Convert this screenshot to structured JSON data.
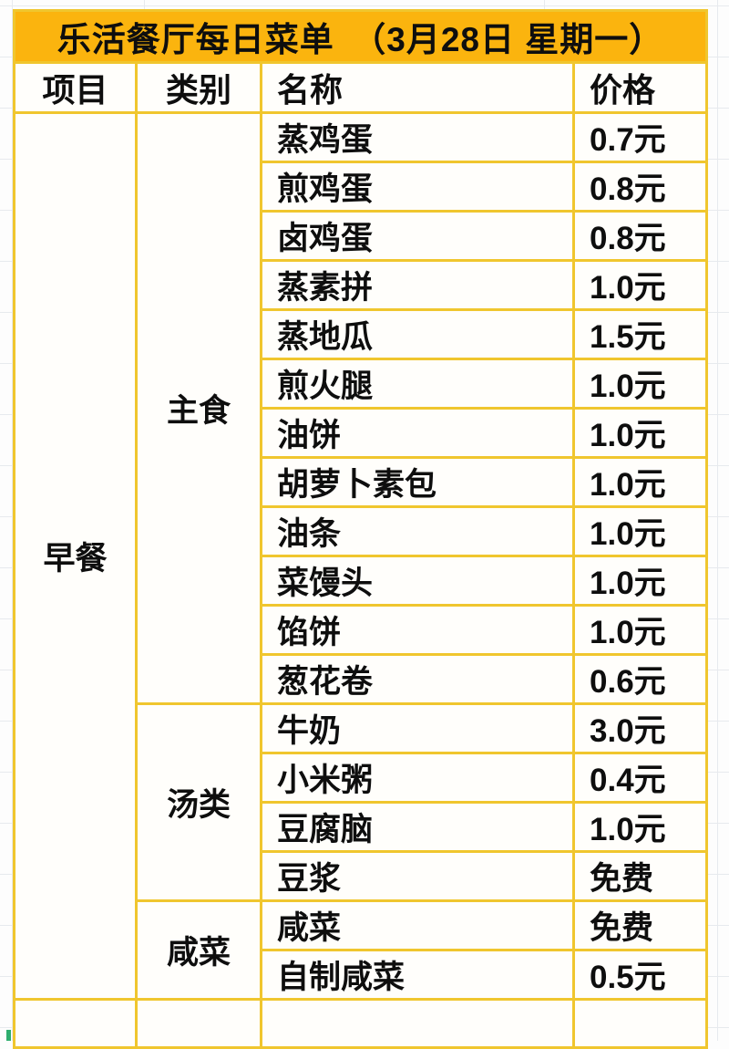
{
  "title": "乐活餐厅每日菜单　（3月28日  星期一）",
  "columns": [
    "项目",
    "类别",
    "名称",
    "价格"
  ],
  "menu": {
    "meal_group": "早餐",
    "categories": [
      {
        "name": "主食",
        "items": [
          {
            "name": "蒸鸡蛋",
            "price": "0.7元"
          },
          {
            "name": "煎鸡蛋",
            "price": "0.8元"
          },
          {
            "name": "卤鸡蛋",
            "price": "0.8元"
          },
          {
            "name": "蒸素拼",
            "price": "1.0元"
          },
          {
            "name": "蒸地瓜",
            "price": "1.5元"
          },
          {
            "name": "煎火腿",
            "price": "1.0元"
          },
          {
            "name": "油饼",
            "price": "1.0元"
          },
          {
            "name": "胡萝卜素包",
            "price": "1.0元"
          },
          {
            "name": "油条",
            "price": "1.0元"
          },
          {
            "name": "菜馒头",
            "price": "1.0元"
          },
          {
            "name": "馅饼",
            "price": "1.0元"
          },
          {
            "name": "葱花卷",
            "price": "0.6元"
          }
        ]
      },
      {
        "name": "汤类",
        "items": [
          {
            "name": "牛奶",
            "price": "3.0元"
          },
          {
            "name": "小米粥",
            "price": "0.4元"
          },
          {
            "name": "豆腐脑",
            "price": "1.0元"
          },
          {
            "name": "豆浆",
            "price": "免费"
          }
        ]
      },
      {
        "name": "咸菜",
        "items": [
          {
            "name": "咸菜",
            "price": "免费"
          },
          {
            "name": "自制咸菜",
            "price": "0.5元"
          }
        ]
      }
    ]
  },
  "colors": {
    "title_background": "#fbb40e",
    "table_border": "#f0c62e",
    "text": "#0e0e0e",
    "background_gridline": "#e7eaee",
    "selection_mark_green": "#2ead6e"
  }
}
